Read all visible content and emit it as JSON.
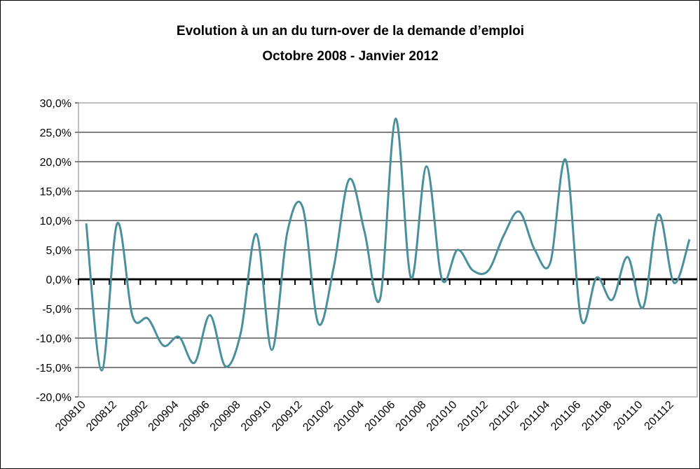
{
  "chart_data": {
    "type": "line",
    "title": "Evolution à un an du turn-over de la demande d’emploi",
    "subtitle": "Octobre 2008 - Janvier 2012",
    "categories": [
      "200810",
      null,
      "200812",
      null,
      "200902",
      null,
      "200904",
      null,
      "200906",
      null,
      "200908",
      null,
      "200910",
      null,
      "200912",
      null,
      "201002",
      null,
      "201004",
      null,
      "201006",
      null,
      "201008",
      null,
      "201010",
      null,
      "201012",
      null,
      "201102",
      null,
      "201104",
      null,
      "201106",
      null,
      "201108",
      null,
      "201110",
      null,
      "201112",
      null
    ],
    "series": [
      {
        "name": "Evolution",
        "color": "#4a8f9c",
        "values": [
          9.5,
          -15.5,
          9.5,
          -6.3,
          -6.7,
          -11.3,
          -9.8,
          -14.2,
          -6.1,
          -14.8,
          -9,
          7.7,
          -12,
          8,
          12.2,
          -7.5,
          2,
          17,
          8,
          -3.3,
          27.3,
          0.2,
          19.2,
          0,
          5,
          1.5,
          1.5,
          7.5,
          11.5,
          5,
          2.8,
          20.3,
          -6.8,
          0.3,
          -3.5,
          3.8,
          -4.8,
          11,
          -0.6,
          6.8
        ]
      }
    ],
    "ylim": [
      -20,
      30
    ],
    "yticks": [
      {
        "value": -20,
        "label": "-20,0%"
      },
      {
        "value": -15,
        "label": "-15,0%"
      },
      {
        "value": -10,
        "label": "-10,0%"
      },
      {
        "value": -5,
        "label": "-5,0%"
      },
      {
        "value": 0,
        "label": "0,0%"
      },
      {
        "value": 5,
        "label": "5,0%"
      },
      {
        "value": 10,
        "label": "10,0%"
      },
      {
        "value": 15,
        "label": "15,0%"
      },
      {
        "value": 20,
        "label": "20,0%"
      },
      {
        "value": 25,
        "label": "25,0%"
      },
      {
        "value": 30,
        "label": "30,0%"
      }
    ],
    "grid": true
  }
}
